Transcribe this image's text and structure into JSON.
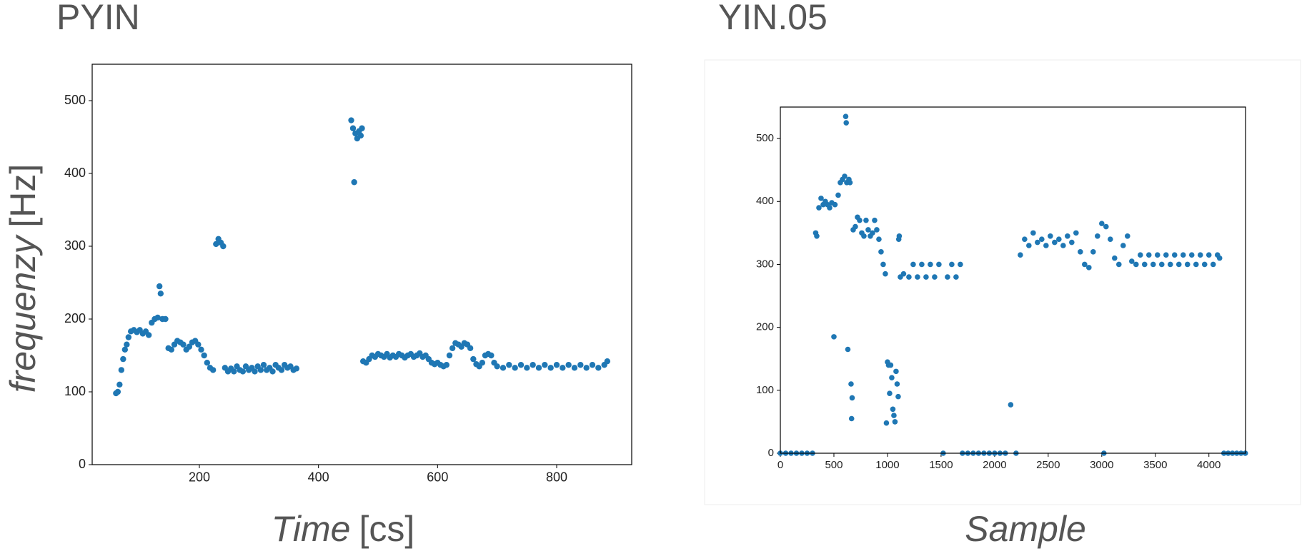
{
  "chart_data": [
    {
      "type": "scatter",
      "title": "PYIN",
      "ylabel": "frequenzy",
      "ylabel_unit": "[Hz]",
      "xlabel": "Time",
      "xlabel_unit": "[cs]",
      "color": "#1f77b4",
      "xlim": [
        20,
        926
      ],
      "ylim": [
        0,
        550
      ],
      "xticks": [
        200,
        400,
        600,
        800
      ],
      "yticks": [
        0,
        100,
        200,
        300,
        400,
        500
      ],
      "grid": false,
      "x": [
        60,
        63,
        66,
        69,
        72,
        75,
        78,
        81,
        85,
        90,
        95,
        100,
        105,
        110,
        115,
        120,
        125,
        130,
        133,
        135,
        138,
        143,
        148,
        153,
        158,
        163,
        168,
        173,
        178,
        183,
        188,
        193,
        198,
        203,
        208,
        213,
        218,
        223,
        228,
        232,
        236,
        240,
        243,
        248,
        253,
        258,
        263,
        268,
        273,
        278,
        283,
        288,
        293,
        298,
        303,
        308,
        313,
        318,
        323,
        328,
        333,
        338,
        343,
        348,
        353,
        358,
        363,
        455,
        458,
        460,
        462,
        465,
        468,
        471,
        473,
        475,
        480,
        485,
        490,
        495,
        500,
        505,
        510,
        515,
        520,
        525,
        530,
        535,
        540,
        545,
        550,
        555,
        560,
        565,
        570,
        575,
        580,
        585,
        590,
        595,
        600,
        605,
        610,
        615,
        620,
        625,
        630,
        635,
        640,
        645,
        650,
        655,
        660,
        665,
        670,
        675,
        680,
        685,
        690,
        695,
        700,
        710,
        720,
        730,
        740,
        750,
        760,
        770,
        780,
        790,
        800,
        810,
        820,
        830,
        840,
        850,
        860,
        870,
        880,
        885
      ],
      "values": [
        98,
        100,
        110,
        130,
        145,
        158,
        165,
        175,
        183,
        185,
        182,
        185,
        180,
        183,
        178,
        195,
        200,
        202,
        245,
        235,
        200,
        200,
        160,
        158,
        165,
        170,
        168,
        165,
        158,
        162,
        168,
        170,
        165,
        158,
        150,
        140,
        133,
        130,
        303,
        310,
        305,
        300,
        133,
        128,
        132,
        128,
        135,
        130,
        128,
        135,
        130,
        133,
        128,
        135,
        130,
        137,
        130,
        133,
        128,
        137,
        133,
        130,
        137,
        133,
        135,
        130,
        132,
        473,
        462,
        388,
        455,
        448,
        458,
        452,
        462,
        142,
        140,
        145,
        150,
        148,
        152,
        150,
        148,
        152,
        147,
        150,
        148,
        152,
        150,
        147,
        150,
        152,
        148,
        150,
        153,
        148,
        150,
        145,
        140,
        138,
        140,
        137,
        135,
        137,
        150,
        160,
        167,
        165,
        162,
        167,
        165,
        160,
        145,
        138,
        135,
        140,
        150,
        152,
        150,
        140,
        135,
        133,
        137,
        133,
        137,
        133,
        137,
        133,
        137,
        133,
        137,
        133,
        137,
        133,
        137,
        133,
        137,
        133,
        137,
        142
      ]
    },
    {
      "type": "scatter",
      "title": "YIN.05",
      "xlabel": "Sample",
      "color": "#1f77b4",
      "xlim": [
        0,
        4342
      ],
      "ylim": [
        0,
        550
      ],
      "xticks": [
        0,
        500,
        1000,
        1500,
        2000,
        2500,
        3000,
        3500,
        4000
      ],
      "yticks": [
        0,
        100,
        200,
        300,
        400,
        500
      ],
      "grid": false,
      "x": [
        0,
        50,
        100,
        150,
        200,
        250,
        300,
        330,
        340,
        360,
        380,
        400,
        420,
        440,
        460,
        480,
        500,
        510,
        540,
        560,
        580,
        600,
        610,
        615,
        620,
        630,
        640,
        650,
        660,
        665,
        670,
        680,
        700,
        720,
        740,
        760,
        780,
        800,
        820,
        840,
        860,
        880,
        900,
        920,
        940,
        960,
        980,
        990,
        1000,
        1010,
        1020,
        1030,
        1040,
        1050,
        1060,
        1070,
        1080,
        1090,
        1100,
        1105,
        1110,
        1120,
        1150,
        1200,
        1240,
        1280,
        1320,
        1360,
        1400,
        1440,
        1480,
        1520,
        1560,
        1600,
        1640,
        1680,
        1700,
        1750,
        1800,
        1850,
        1900,
        1950,
        2000,
        2050,
        2100,
        2150,
        2200,
        2240,
        2280,
        2320,
        2360,
        2400,
        2440,
        2480,
        2520,
        2560,
        2600,
        2640,
        2680,
        2720,
        2760,
        2800,
        2840,
        2880,
        2920,
        2960,
        3000,
        3020,
        3040,
        3080,
        3120,
        3160,
        3200,
        3240,
        3280,
        3320,
        3360,
        3400,
        3440,
        3480,
        3520,
        3560,
        3600,
        3640,
        3680,
        3720,
        3760,
        3800,
        3840,
        3880,
        3920,
        3960,
        4000,
        4040,
        4080,
        4100,
        4140,
        4180,
        4220,
        4260,
        4300,
        4340
      ],
      "values": [
        0,
        0,
        0,
        0,
        0,
        0,
        0,
        350,
        345,
        390,
        405,
        395,
        400,
        395,
        390,
        398,
        185,
        395,
        410,
        430,
        435,
        440,
        535,
        525,
        430,
        165,
        435,
        430,
        110,
        55,
        88,
        355,
        360,
        375,
        370,
        350,
        345,
        370,
        355,
        345,
        350,
        370,
        355,
        340,
        320,
        300,
        285,
        48,
        145,
        140,
        95,
        140,
        120,
        70,
        60,
        50,
        130,
        110,
        90,
        340,
        345,
        280,
        285,
        280,
        300,
        280,
        300,
        280,
        300,
        280,
        300,
        0,
        280,
        300,
        280,
        300,
        0,
        0,
        0,
        0,
        0,
        0,
        0,
        0,
        0,
        77,
        0,
        315,
        340,
        330,
        350,
        335,
        340,
        330,
        345,
        335,
        340,
        330,
        345,
        335,
        350,
        320,
        300,
        295,
        320,
        345,
        365,
        0,
        360,
        340,
        310,
        300,
        330,
        345,
        305,
        300,
        315,
        300,
        315,
        300,
        315,
        300,
        315,
        300,
        315,
        300,
        315,
        300,
        315,
        300,
        315,
        300,
        315,
        300,
        315,
        310,
        0,
        0,
        0,
        0,
        0,
        0
      ]
    }
  ]
}
